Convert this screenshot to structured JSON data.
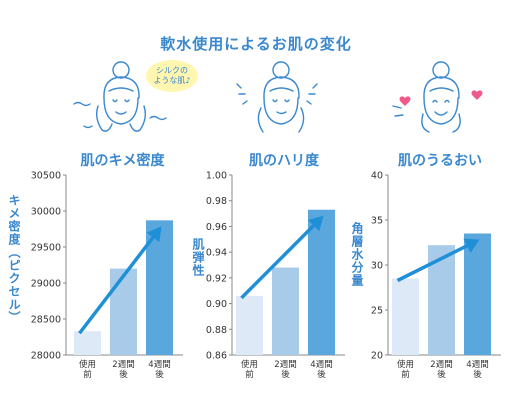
{
  "title": "軟水使用によるお肌の変化",
  "illustrations": {
    "bubble_text": "シルクの\nような肌♪"
  },
  "colors": {
    "accent": "#3a88cf",
    "bar_light": "#dde9f6",
    "bar_mid": "#a9cbea",
    "bar_dark": "#5aa7de",
    "arrow": "#1f8fd6"
  },
  "chart_data": [
    {
      "type": "bar",
      "title": "肌のキメ密度",
      "ylabel": "キメ密度（ピクセル）",
      "categories": [
        "使用前",
        "2週間後",
        "4週間後"
      ],
      "category_lines": [
        [
          "使用",
          "前"
        ],
        [
          "2週間",
          "後"
        ],
        [
          "4週間",
          "後"
        ]
      ],
      "values": [
        28330,
        29200,
        29870
      ],
      "ylim": [
        28000,
        30500
      ],
      "yticks": [
        28000,
        28500,
        29000,
        29500,
        30000,
        30500
      ],
      "tick_decimals": 0,
      "trend_arrow": true
    },
    {
      "type": "bar",
      "title": "肌のハリ度",
      "ylabel": "肌弾性",
      "categories": [
        "使用前",
        "2週間後",
        "4週間後"
      ],
      "category_lines": [
        [
          "使用",
          "前"
        ],
        [
          "2週間",
          "後"
        ],
        [
          "4週間",
          "後"
        ]
      ],
      "values": [
        0.906,
        0.928,
        0.973
      ],
      "ylim": [
        0.86,
        1.0
      ],
      "yticks": [
        0.86,
        0.88,
        0.9,
        0.92,
        0.94,
        0.96,
        0.98,
        1.0
      ],
      "tick_decimals": 2,
      "trend_arrow": true
    },
    {
      "type": "bar",
      "title": "肌のうるおい",
      "ylabel": "角層水分量",
      "categories": [
        "使用前",
        "2週間後",
        "4週間後"
      ],
      "category_lines": [
        [
          "使用",
          "前"
        ],
        [
          "2週間",
          "後"
        ],
        [
          "4週間",
          "後"
        ]
      ],
      "values": [
        28.5,
        32.2,
        33.5
      ],
      "ylim": [
        20,
        40
      ],
      "yticks": [
        20,
        25,
        30,
        35,
        40
      ],
      "tick_decimals": 0,
      "trend_arrow": true
    }
  ]
}
